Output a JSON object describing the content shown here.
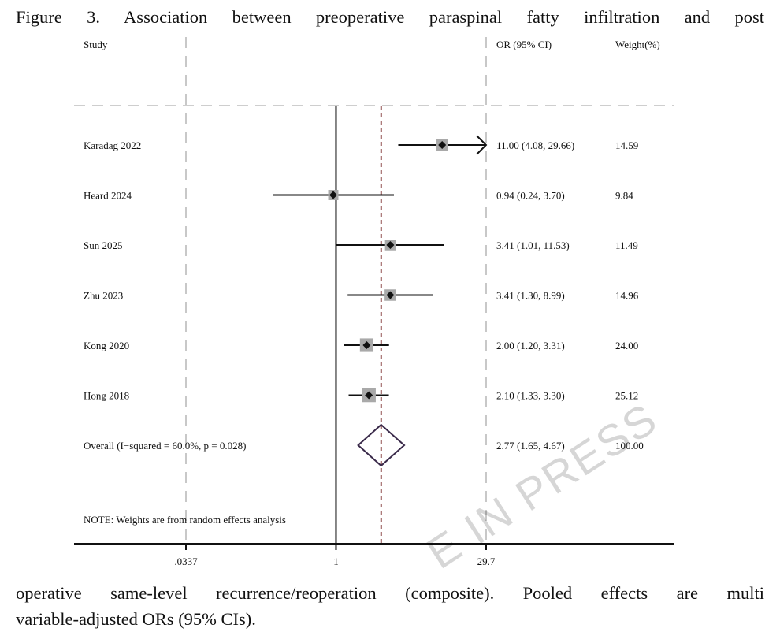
{
  "caption": {
    "top_line": "Figure 3. Association between preoperative paraspinal fatty infiltration and post",
    "bottom_line1": "operative same-level recurrence/reoperation (composite). Pooled effects are multi",
    "bottom_line2": "variable-adjusted ORs (95% CIs)."
  },
  "watermark": "E IN PRESS",
  "chart_data": {
    "type": "forest",
    "scale": "log",
    "x_ticks": [
      ".0337",
      "1",
      "29.7"
    ],
    "x_tick_values": [
      0.0337,
      1,
      29.7
    ],
    "null_value": 1,
    "pooled_value": 2.77,
    "headers": {
      "study": "Study",
      "or": "OR (95% CI)",
      "weight": "Weight(%)"
    },
    "studies": [
      {
        "label": "Karadag 2022",
        "or": 11.0,
        "lower": 4.08,
        "upper": 29.66,
        "or_text": "11.00 (4.08, 29.66)",
        "weight": 14.59,
        "weight_text": "14.59",
        "truncated_upper": true
      },
      {
        "label": "Heard 2024",
        "or": 0.94,
        "lower": 0.24,
        "upper": 3.7,
        "or_text": "0.94 (0.24, 3.70)",
        "weight": 9.84,
        "weight_text": "9.84"
      },
      {
        "label": "Sun 2025",
        "or": 3.41,
        "lower": 1.01,
        "upper": 11.53,
        "or_text": "3.41 (1.01, 11.53)",
        "weight": 11.49,
        "weight_text": "11.49"
      },
      {
        "label": "Zhu 2023",
        "or": 3.41,
        "lower": 1.3,
        "upper": 8.99,
        "or_text": "3.41 (1.30, 8.99)",
        "weight": 14.96,
        "weight_text": "14.96"
      },
      {
        "label": "Kong 2020",
        "or": 2.0,
        "lower": 1.2,
        "upper": 3.31,
        "or_text": "2.00 (1.20, 3.31)",
        "weight": 24.0,
        "weight_text": "24.00"
      },
      {
        "label": "Hong 2018",
        "or": 2.1,
        "lower": 1.33,
        "upper": 3.3,
        "or_text": "2.10 (1.33, 3.30)",
        "weight": 25.12,
        "weight_text": "25.12"
      }
    ],
    "overall": {
      "label": "Overall  (I−squared = 60.0%, p = 0.028)",
      "or": 2.77,
      "lower": 1.65,
      "upper": 4.67,
      "or_text": "2.77 (1.65, 4.67)",
      "weight_text": "100.00"
    },
    "note": "NOTE: Weights are from random effects analysis"
  },
  "colors": {
    "ink": "#111111",
    "weight_box": "#a9a9a9",
    "reference_line": "#7a2a2a",
    "guide_dash": "#c8c8c8",
    "diamond": "#3a2a4a"
  }
}
